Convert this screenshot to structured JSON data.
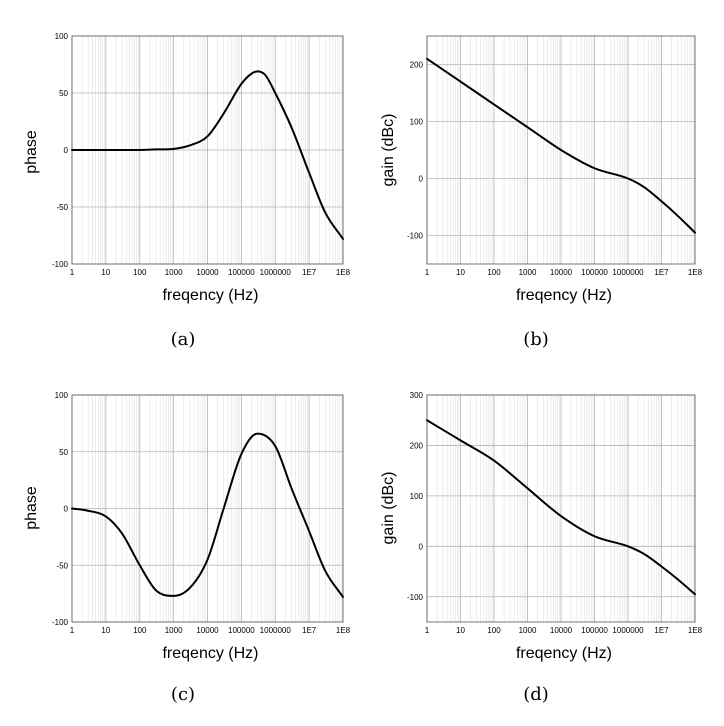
{
  "chart_data": [
    {
      "type": "line",
      "caption": "(a)",
      "xlabel": "freqency (Hz)",
      "ylabel": "phase",
      "xscale": "log",
      "xlim": [
        1,
        100000000
      ],
      "ylim": [
        -100,
        100
      ],
      "xticks": [
        1,
        10,
        100,
        1000,
        10000,
        100000,
        1000000,
        10000000,
        100000000
      ],
      "xtick_labels": [
        "1",
        "10",
        "100",
        "1000",
        "10000",
        "100000",
        "1000000",
        "1E7",
        "1E8"
      ],
      "yticks": [
        -100,
        -50,
        0,
        50,
        100
      ],
      "ytick_labels": [
        "-100",
        "-50",
        "0",
        "50",
        "100"
      ],
      "grid": true,
      "series": [
        {
          "x": [
            1,
            10,
            100,
            300,
            1000,
            3000,
            10000,
            30000,
            100000,
            200000,
            300000,
            500000,
            1000000,
            3000000,
            10000000,
            30000000,
            100000000
          ],
          "y": [
            0,
            0,
            0,
            0.5,
            1,
            4,
            12,
            32,
            58,
            67,
            69,
            66,
            50,
            20,
            -20,
            -55,
            -78
          ]
        }
      ]
    },
    {
      "type": "line",
      "caption": "(b)",
      "xlabel": "freqency (Hz)",
      "ylabel": "gain (dBc)",
      "xscale": "log",
      "xlim": [
        1,
        100000000
      ],
      "ylim": [
        -150,
        250
      ],
      "xticks": [
        1,
        10,
        100,
        1000,
        10000,
        100000,
        1000000,
        10000000,
        100000000
      ],
      "xtick_labels": [
        "1",
        "10",
        "100",
        "1000",
        "10000",
        "100000",
        "1000000",
        "1E7",
        "1E8"
      ],
      "yticks": [
        -100,
        0,
        100,
        200
      ],
      "ytick_labels": [
        "-100",
        "0",
        "100",
        "200"
      ],
      "grid": true,
      "series": [
        {
          "x": [
            1,
            10,
            100,
            1000,
            10000,
            100000,
            1000000,
            3000000,
            10000000,
            30000000,
            100000000
          ],
          "y": [
            210,
            170,
            130,
            90,
            50,
            18,
            0,
            -15,
            -40,
            -65,
            -95
          ]
        }
      ]
    },
    {
      "type": "line",
      "caption": "(c)",
      "xlabel": "freqency (Hz)",
      "ylabel": "phase",
      "xscale": "log",
      "xlim": [
        1,
        100000000
      ],
      "ylim": [
        -100,
        100
      ],
      "xticks": [
        1,
        10,
        100,
        1000,
        10000,
        100000,
        1000000,
        10000000,
        100000000
      ],
      "xtick_labels": [
        "1",
        "10",
        "100",
        "1000",
        "10000",
        "100000",
        "1000000",
        "1E7",
        "1E8"
      ],
      "yticks": [
        -100,
        -50,
        0,
        50,
        100
      ],
      "ytick_labels": [
        "-100",
        "-50",
        "0",
        "50",
        "100"
      ],
      "grid": true,
      "series": [
        {
          "x": [
            1,
            3,
            10,
            30,
            100,
            300,
            1000,
            3000,
            10000,
            30000,
            100000,
            300000,
            1000000,
            3000000,
            10000000,
            30000000,
            100000000
          ],
          "y": [
            0,
            -2,
            -7,
            -22,
            -50,
            -72,
            -77,
            -70,
            -45,
            0,
            48,
            66,
            55,
            18,
            -20,
            -55,
            -78
          ]
        }
      ]
    },
    {
      "type": "line",
      "caption": "(d)",
      "xlabel": "freqency (Hz)",
      "ylabel": "gain (dBc)",
      "xscale": "log",
      "xlim": [
        1,
        100000000
      ],
      "ylim": [
        -150,
        300
      ],
      "xticks": [
        1,
        10,
        100,
        1000,
        10000,
        100000,
        1000000,
        10000000,
        100000000
      ],
      "xtick_labels": [
        "1",
        "10",
        "100",
        "1000",
        "10000",
        "100000",
        "1000000",
        "1E7",
        "1E8"
      ],
      "yticks": [
        -100,
        0,
        100,
        200,
        300
      ],
      "ytick_labels": [
        "-100",
        "0",
        "100",
        "200",
        "300"
      ],
      "grid": true,
      "series": [
        {
          "x": [
            1,
            10,
            100,
            1000,
            10000,
            100000,
            1000000,
            3000000,
            10000000,
            30000000,
            100000000
          ],
          "y": [
            250,
            210,
            170,
            115,
            60,
            20,
            0,
            -15,
            -40,
            -65,
            -95
          ]
        }
      ]
    }
  ]
}
